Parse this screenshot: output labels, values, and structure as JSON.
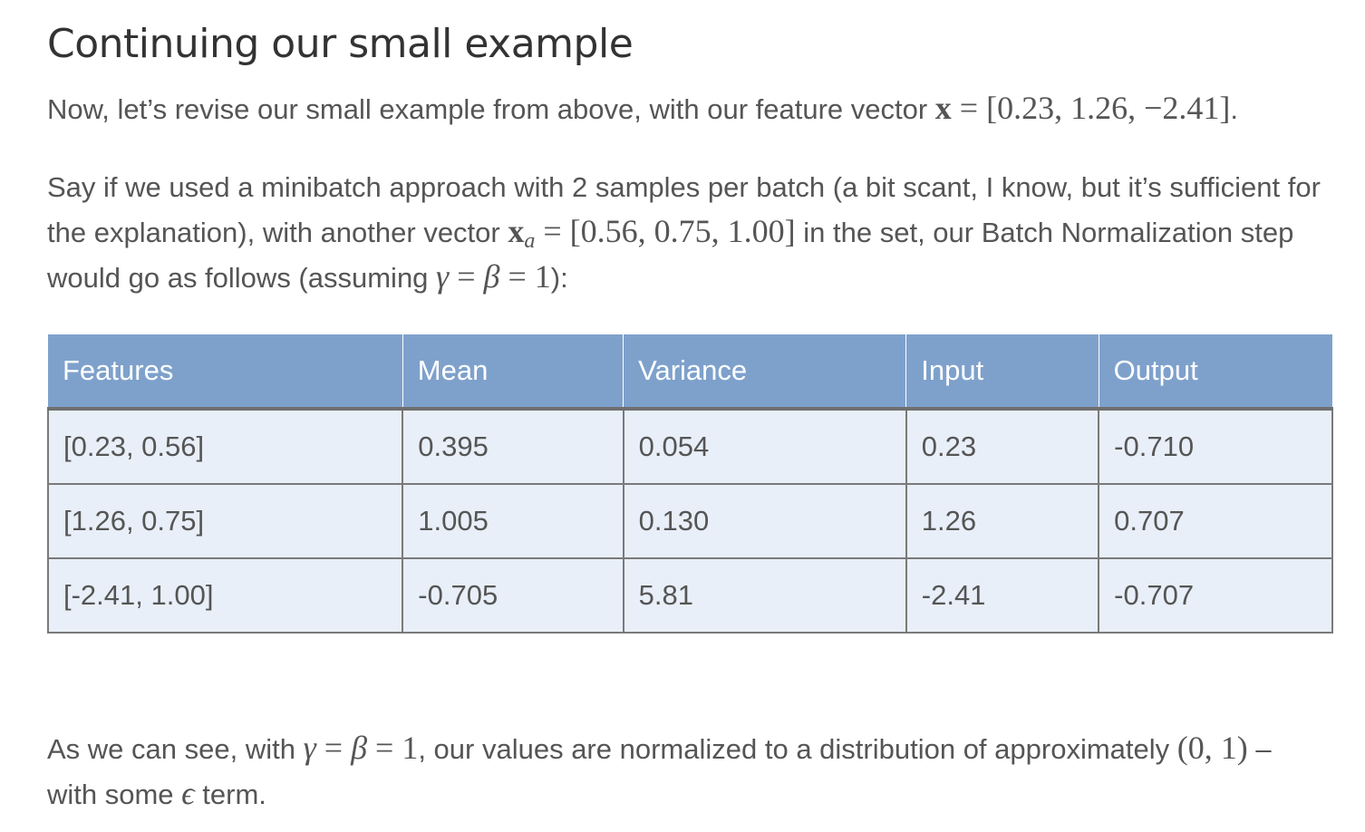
{
  "title": "Continuing our small example",
  "intro": {
    "text_before": "Now, let’s revise our small example from above, with our feature vector ",
    "vector_symbol": "x",
    "equals": " = ",
    "vector_value": "[0.23, 1.26, −2.41]",
    "text_after": "."
  },
  "setup": {
    "text_1": "Say if we used a minibatch approach with 2 samples per batch (a bit scant, I know, but it’s sufficient for the explanation), with another vector ",
    "vector_symbol": "x",
    "vector_subscript": "a",
    "equals": " = ",
    "vector_value": "[0.56, 0.75, 1.00]",
    "text_2": " in the set, our Batch Normalization step would go as follows (assuming ",
    "gamma": "γ",
    "eq_1": " = ",
    "beta": "β",
    "eq_2": " = 1",
    "text_3": "):"
  },
  "table": {
    "headers": [
      "Features",
      "Mean",
      "Variance",
      "Input",
      "Output"
    ],
    "rows": [
      [
        "[0.23, 0.56]",
        "0.395",
        "0.054",
        "0.23",
        "-0.710"
      ],
      [
        "[1.26, 0.75]",
        "1.005",
        "0.130",
        "1.26",
        "0.707"
      ],
      [
        "[-2.41, 1.00]",
        "-0.705",
        "5.81",
        "-2.41",
        "-0.707"
      ]
    ]
  },
  "conclusion": {
    "text_1": "As we can see, with ",
    "gamma": "γ",
    "eq_1": " = ",
    "beta": "β",
    "eq_2": " = 1",
    "text_2": ", our values are normalized to a distribution of approximately ",
    "distribution": "(0, 1)",
    "text_3": " – with some ",
    "epsilon": "ϵ",
    "text_4": " term."
  },
  "colors": {
    "header_bg": "#7ea1cc",
    "cell_bg": "#e8eff8",
    "text": "#555555",
    "heading": "#333333"
  }
}
